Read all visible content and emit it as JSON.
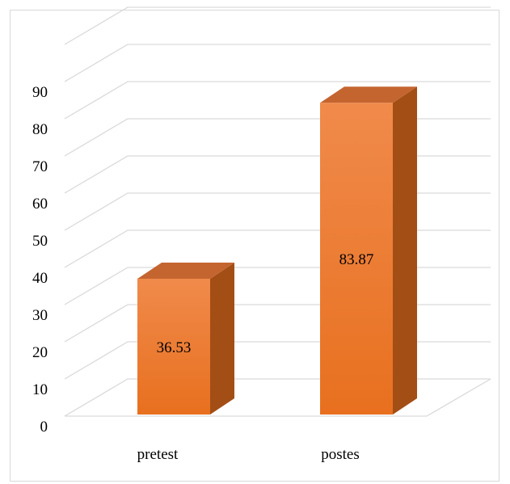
{
  "chart_data": {
    "type": "bar",
    "style": "3d-column",
    "categories": [
      "pretest",
      "postes"
    ],
    "values": [
      36.53,
      83.87
    ],
    "data_labels": [
      "36.53",
      "83.87"
    ],
    "title": "",
    "xlabel": "",
    "ylabel": "",
    "ylim": [
      0,
      90
    ],
    "yticks": [
      "0",
      "10",
      "20",
      "30",
      "40",
      "50",
      "60",
      "70",
      "80",
      "90"
    ],
    "grid": true,
    "legend": "none",
    "colors": {
      "bar_front_top": "#f08a4b",
      "bar_front_bottom": "#e8701f",
      "bar_side": "#a34e15",
      "bar_top": "#c46530",
      "gridline": "#d9d9d9"
    }
  }
}
